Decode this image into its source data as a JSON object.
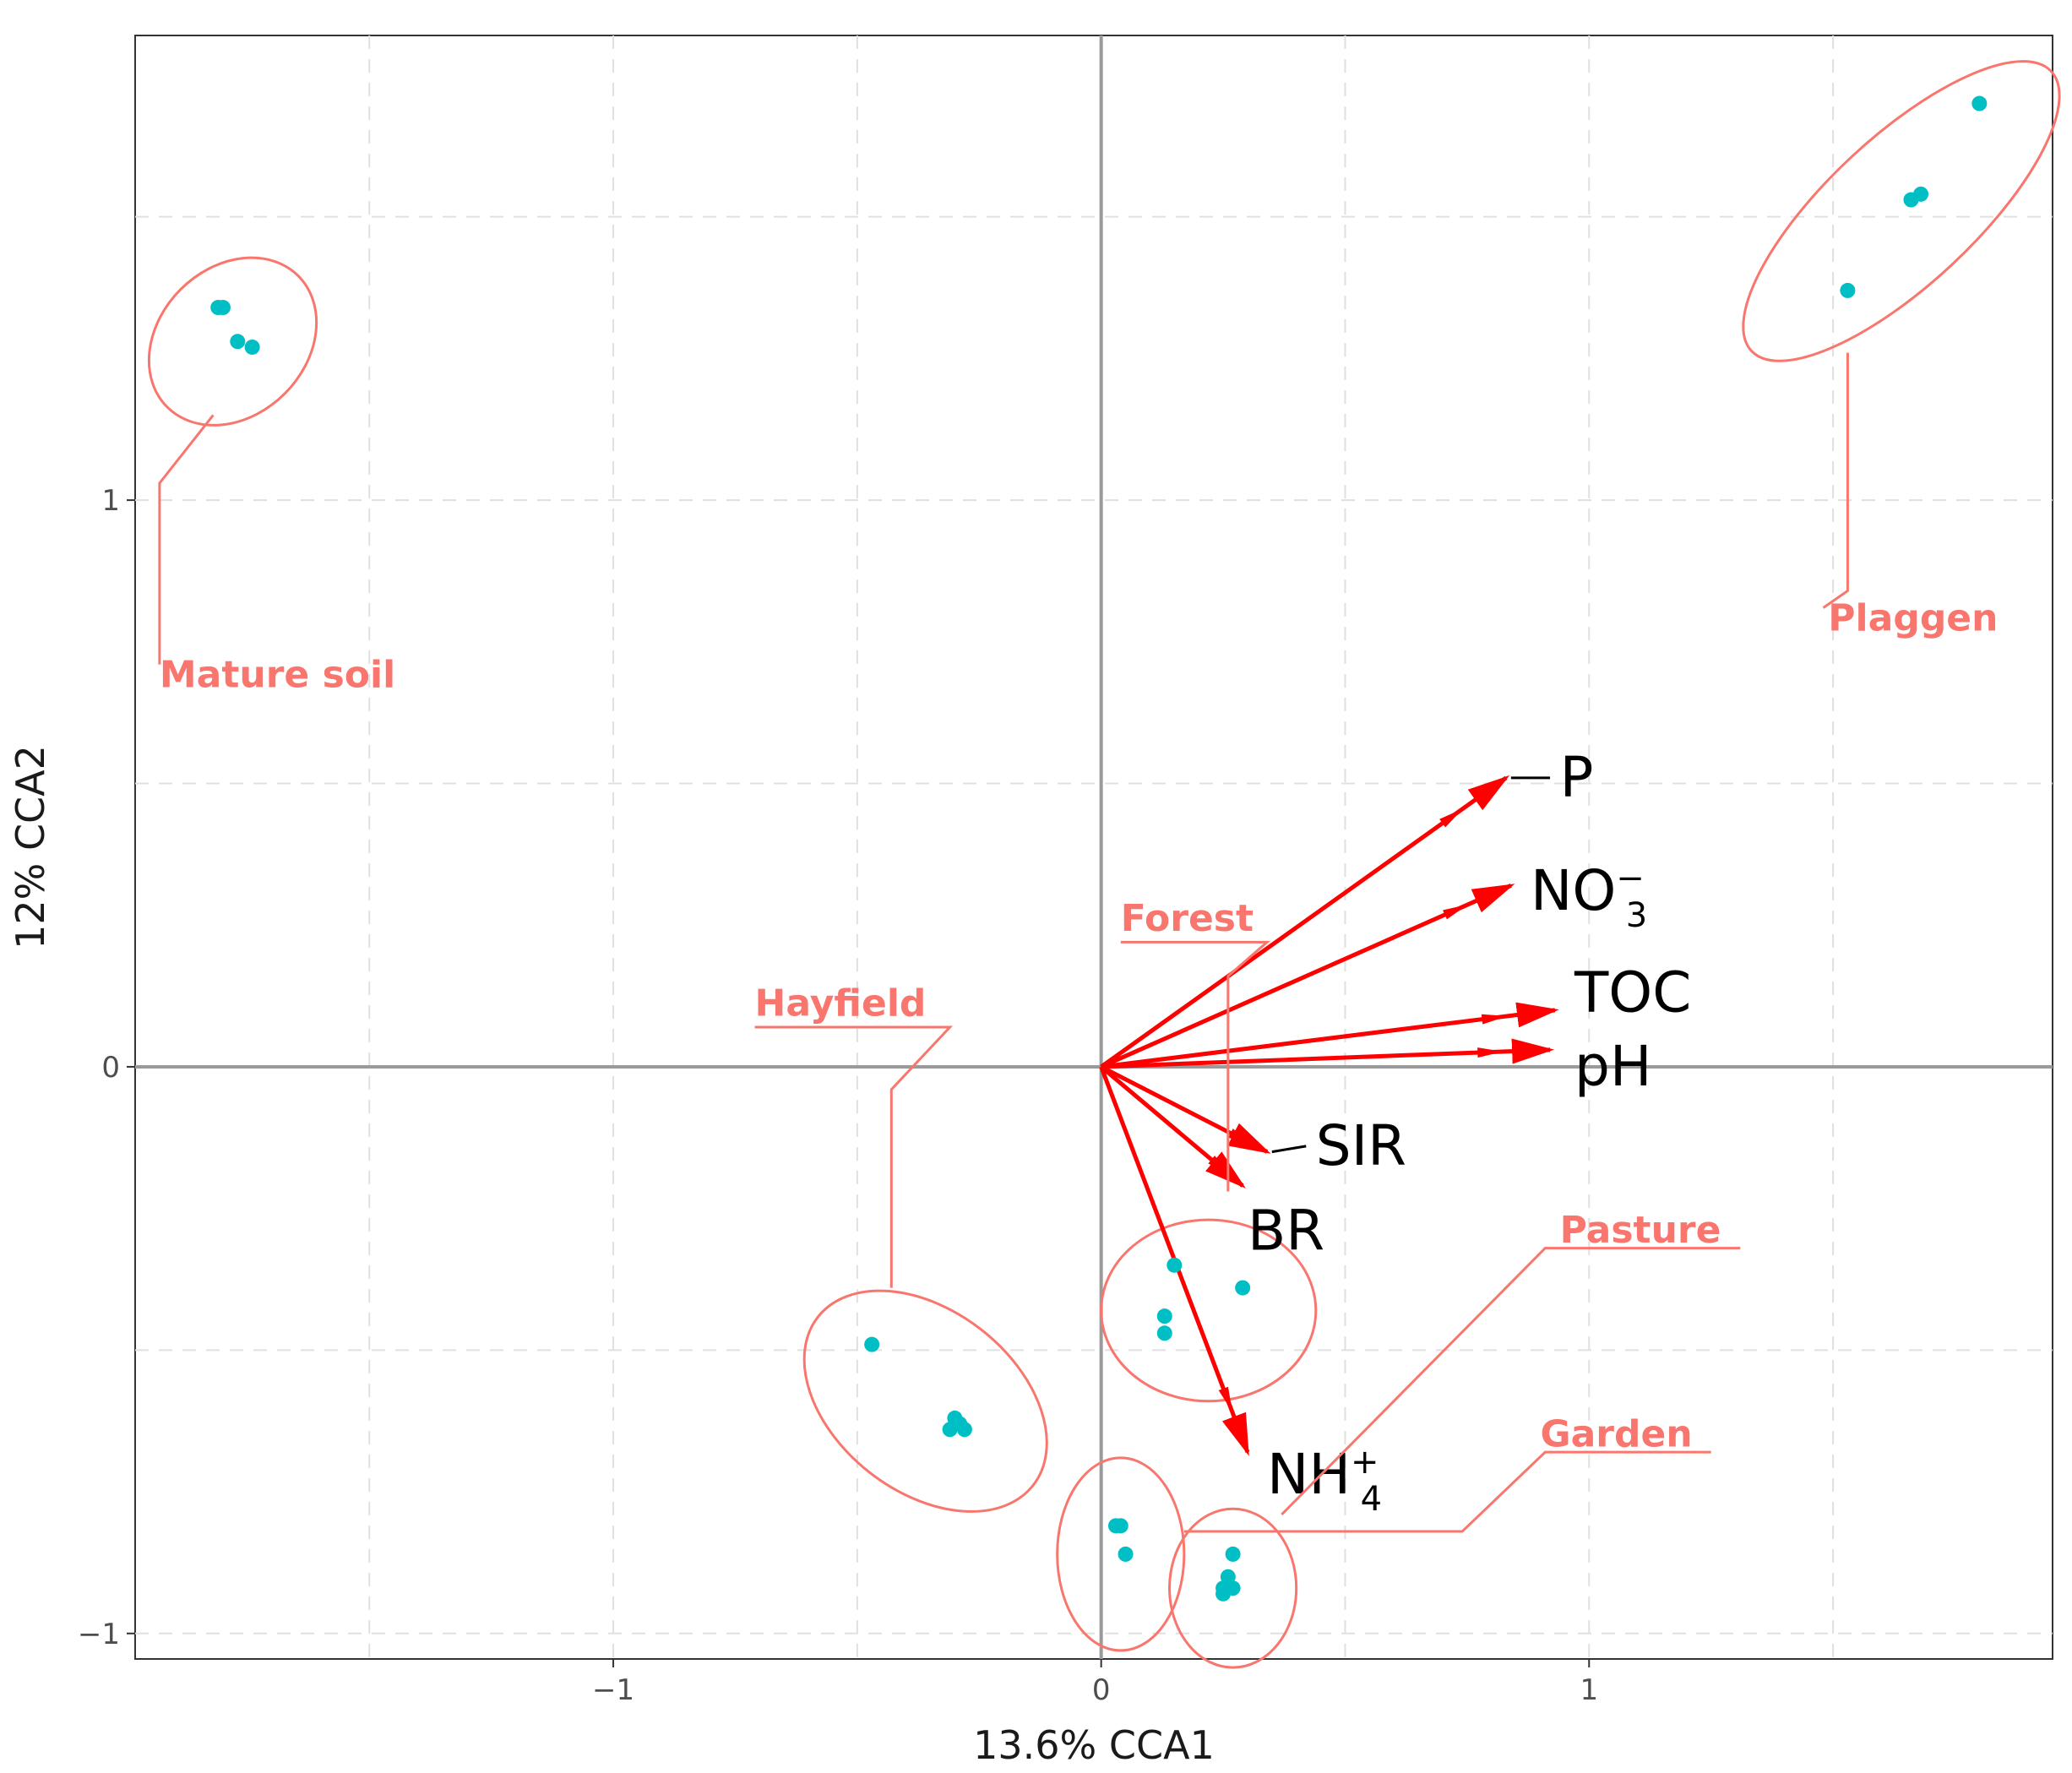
{
  "chart_data": {
    "type": "scatter",
    "title": "",
    "xlabel": "13.6% CCA1",
    "ylabel": "12% CCA2",
    "xlim": [
      -1.98,
      1.95
    ],
    "ylim": [
      -1.045,
      1.82
    ],
    "grid": true,
    "x_ticks": [
      {
        "value": -1,
        "label": "−1"
      },
      {
        "value": 0,
        "label": "0"
      },
      {
        "value": 1,
        "label": "1"
      }
    ],
    "y_ticks": [
      {
        "value": -1,
        "label": "−1"
      },
      {
        "value": 0,
        "label": "0"
      },
      {
        "value": 1,
        "label": "1"
      }
    ],
    "point_color": "#00BFC4",
    "group_color": "#F8766D",
    "arrow_color": "#FF0000",
    "groups": [
      {
        "name": "Mature soil",
        "label_pos": [
          -1.93,
          0.67
        ],
        "label_leader": [
          [
            -1.93,
            0.71
          ],
          [
            -1.93,
            1.03
          ],
          [
            -1.82,
            1.15
          ]
        ],
        "ellipse": {
          "cx": -1.78,
          "cy": 1.28,
          "rx": 0.19,
          "ry": 0.13,
          "angle": -45
        },
        "points": [
          [
            -1.81,
            1.34
          ],
          [
            -1.8,
            1.34
          ],
          [
            -1.77,
            1.28
          ],
          [
            -1.74,
            1.27
          ]
        ]
      },
      {
        "name": "Plaggen",
        "label_pos": [
          1.49,
          0.77
        ],
        "label_leader": [
          [
            1.48,
            0.81
          ],
          [
            1.53,
            0.84
          ],
          [
            1.53,
            1.26
          ]
        ],
        "ellipse": {
          "cx": 1.64,
          "cy": 1.51,
          "rx": 0.42,
          "ry": 0.13,
          "angle": -43
        },
        "points": [
          [
            1.53,
            1.37
          ],
          [
            1.66,
            1.53
          ],
          [
            1.68,
            1.54
          ],
          [
            1.8,
            1.7
          ]
        ]
      },
      {
        "name": "Forest",
        "label_pos": [
          0.04,
          0.24
        ],
        "label_leader": [
          [
            0.04,
            0.22
          ],
          [
            0.34,
            0.22
          ],
          [
            0.26,
            0.16
          ],
          [
            0.26,
            -0.22
          ]
        ],
        "ellipse": {
          "cx": 0.22,
          "cy": -0.43,
          "rx": 0.22,
          "ry": 0.16,
          "angle": 0
        },
        "points": [
          [
            0.15,
            -0.35
          ],
          [
            0.29,
            -0.39
          ],
          [
            0.13,
            -0.44
          ],
          [
            0.13,
            -0.47
          ]
        ]
      },
      {
        "name": "Hayfield",
        "label_pos": [
          -0.71,
          0.09
        ],
        "label_leader": [
          [
            -0.71,
            0.07
          ],
          [
            -0.31,
            0.07
          ],
          [
            -0.43,
            -0.04
          ],
          [
            -0.43,
            -0.39
          ]
        ],
        "ellipse": {
          "cx": -0.36,
          "cy": -0.59,
          "rx": 0.28,
          "ry": 0.16,
          "angle": 38
        },
        "points": [
          [
            -0.47,
            -0.49
          ],
          [
            -0.3,
            -0.62
          ],
          [
            -0.29,
            -0.63
          ],
          [
            -0.31,
            -0.64
          ],
          [
            -0.28,
            -0.64
          ]
        ]
      },
      {
        "name": "Pasture",
        "label_pos": [
          0.94,
          -0.31
        ],
        "label_leader": [
          [
            1.31,
            -0.32
          ],
          [
            0.91,
            -0.32
          ],
          [
            0.37,
            -0.79
          ]
        ],
        "ellipse": {
          "cx": 0.27,
          "cy": -0.92,
          "rx": 0.13,
          "ry": 0.14,
          "angle": 0
        },
        "points": [
          [
            0.27,
            -0.86
          ],
          [
            0.26,
            -0.9
          ],
          [
            0.27,
            -0.92
          ],
          [
            0.25,
            -0.92
          ],
          [
            0.25,
            -0.93
          ]
        ]
      },
      {
        "name": "Garden",
        "label_pos": [
          0.9,
          -0.67
        ],
        "label_leader": [
          [
            1.25,
            -0.68
          ],
          [
            0.91,
            -0.68
          ],
          [
            0.74,
            -0.82
          ],
          [
            0.17,
            -0.82
          ]
        ],
        "ellipse": {
          "cx": 0.04,
          "cy": -0.86,
          "rx": 0.13,
          "ry": 0.17,
          "angle": 0
        },
        "points": [
          [
            0.03,
            -0.81
          ],
          [
            0.04,
            -0.81
          ],
          [
            0.05,
            -0.86
          ]
        ]
      }
    ],
    "vectors": [
      {
        "name": "P",
        "sub": "",
        "sup": "",
        "x": 0.83,
        "y": 0.51,
        "label_x": 0.94,
        "label_y": 0.51,
        "leader": [
          [
            0.84,
            0.51
          ],
          [
            0.92,
            0.51
          ]
        ]
      },
      {
        "name": "NO",
        "sub": "3",
        "sup": "−",
        "x": 0.84,
        "y": 0.32,
        "label_x": 0.88,
        "label_y": 0.31
      },
      {
        "name": "TOC",
        "sub": "",
        "sup": "",
        "x": 0.93,
        "y": 0.1,
        "label_x": 0.97,
        "label_y": 0.13
      },
      {
        "name": "pH",
        "sub": "",
        "sup": "",
        "x": 0.92,
        "y": 0.03,
        "label_x": 0.97,
        "label_y": 0.0
      },
      {
        "name": "SIR",
        "sub": "",
        "sup": "",
        "x": 0.34,
        "y": -0.15,
        "label_x": 0.44,
        "label_y": -0.14,
        "leader": [
          [
            0.35,
            -0.15
          ],
          [
            0.42,
            -0.14
          ]
        ]
      },
      {
        "name": "BR",
        "sub": "",
        "sup": "",
        "x": 0.29,
        "y": -0.21,
        "label_x": 0.3,
        "label_y": -0.29
      },
      {
        "name": "NH",
        "sub": "4",
        "sup": "+",
        "x": 0.3,
        "y": -0.68,
        "label_x": 0.34,
        "label_y": -0.72
      }
    ]
  }
}
